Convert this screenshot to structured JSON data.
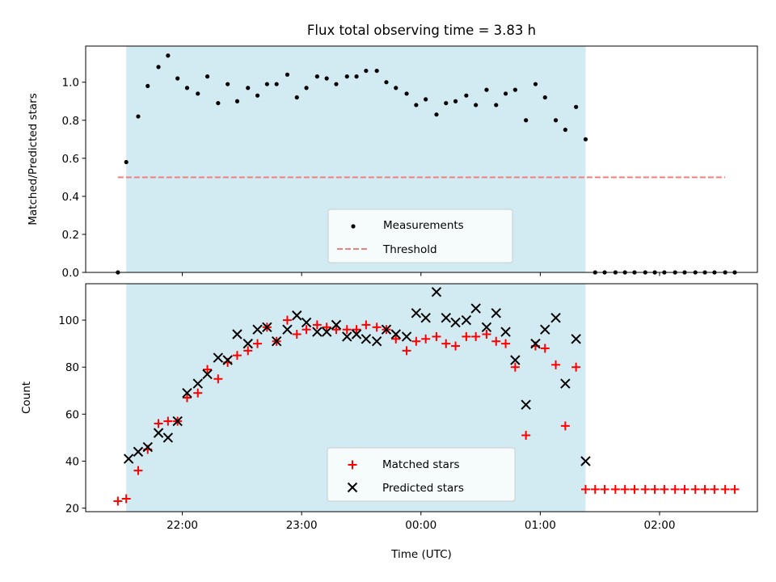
{
  "figure": {
    "title": "Flux total observing time = 3.83 h"
  },
  "chart_data": [
    {
      "type": "scatter",
      "panel": "top",
      "ylabel": "Matched/Predicted stars",
      "xlabel": "",
      "x_unit": "time of day (UTC), hours since 00:00 of first night; values >= 24 wrap past midnight",
      "xlim": [
        21.19,
        26.82
      ],
      "ylim": [
        0.0,
        1.19
      ],
      "yticks": [
        0.0,
        0.2,
        0.4,
        0.6,
        0.8,
        1.0
      ],
      "ytick_labels": [
        "0.0",
        "0.2",
        "0.4",
        "0.6",
        "0.8",
        "1.0"
      ],
      "xticks": [
        22,
        23,
        24,
        25,
        26
      ],
      "xtick_labels": [
        "22:00",
        "23:00",
        "00:00",
        "01:00",
        "02:00"
      ],
      "grid": false,
      "legend_position": "lower-center",
      "shaded_interval": {
        "x": [
          21.53,
          25.38
        ],
        "color": "#add8e6"
      },
      "series": [
        {
          "name": "Measurements",
          "marker": "dot",
          "color": "#000000",
          "x": [
            21.46,
            21.53,
            21.63,
            21.71,
            21.8,
            21.88,
            21.96,
            22.04,
            22.13,
            22.21,
            22.3,
            22.38,
            22.46,
            22.55,
            22.63,
            22.71,
            22.79,
            22.88,
            22.96,
            23.04,
            23.13,
            23.21,
            23.29,
            23.38,
            23.46,
            23.54,
            23.63,
            23.71,
            23.79,
            23.88,
            23.96,
            24.04,
            24.13,
            24.21,
            24.29,
            24.38,
            24.46,
            24.55,
            24.63,
            24.71,
            24.79,
            24.88,
            24.96,
            25.04,
            25.13,
            25.21,
            25.3,
            25.38,
            25.46,
            25.54,
            25.63,
            25.71,
            25.79,
            25.88,
            25.96,
            26.04,
            26.13,
            26.21,
            26.3,
            26.38,
            26.46,
            26.55,
            26.63
          ],
          "y": [
            0.0,
            0.58,
            0.82,
            0.98,
            1.08,
            1.14,
            1.02,
            0.97,
            0.94,
            1.03,
            0.89,
            0.99,
            0.9,
            0.97,
            0.93,
            0.99,
            0.99,
            1.04,
            0.92,
            0.97,
            1.03,
            1.02,
            0.99,
            1.03,
            1.03,
            1.06,
            1.06,
            1.0,
            0.97,
            0.94,
            0.88,
            0.91,
            0.83,
            0.89,
            0.9,
            0.93,
            0.88,
            0.96,
            0.88,
            0.94,
            0.96,
            0.8,
            0.99,
            0.92,
            0.8,
            0.75,
            0.87,
            0.7,
            0.0,
            0.0,
            0.0,
            0.0,
            0.0,
            0.0,
            0.0,
            0.0,
            0.0,
            0.0,
            0.0,
            0.0,
            0.0,
            0.0,
            0.0
          ]
        },
        {
          "name": "Threshold",
          "style": "dashed",
          "color": "#f08080",
          "x": [
            21.46,
            26.55
          ],
          "y": [
            0.5,
            0.5
          ]
        }
      ]
    },
    {
      "type": "scatter",
      "panel": "bottom",
      "ylabel": "Count",
      "xlabel": "Time (UTC)",
      "x_unit": "time of day (UTC), hours since 00:00 of first night; values >= 24 wrap past midnight",
      "xlim": [
        21.19,
        26.82
      ],
      "ylim": [
        18.5,
        115.5
      ],
      "yticks": [
        20,
        40,
        60,
        80,
        100
      ],
      "ytick_labels": [
        "20",
        "40",
        "60",
        "80",
        "100"
      ],
      "xticks": [
        22,
        23,
        24,
        25,
        26
      ],
      "xtick_labels": [
        "22:00",
        "23:00",
        "00:00",
        "01:00",
        "02:00"
      ],
      "grid": false,
      "legend_position": "lower-center",
      "shaded_interval": {
        "x": [
          21.53,
          25.38
        ],
        "color": "#add8e6"
      },
      "series": [
        {
          "name": "Matched stars",
          "marker": "plus",
          "color": "#ff0000",
          "x": [
            21.46,
            21.53,
            21.63,
            21.71,
            21.8,
            21.88,
            21.96,
            22.04,
            22.13,
            22.21,
            22.3,
            22.38,
            22.46,
            22.55,
            22.63,
            22.71,
            22.79,
            22.88,
            22.96,
            23.04,
            23.13,
            23.21,
            23.29,
            23.38,
            23.46,
            23.54,
            23.63,
            23.71,
            23.79,
            23.88,
            23.96,
            24.04,
            24.13,
            24.21,
            24.29,
            24.38,
            24.46,
            24.55,
            24.63,
            24.71,
            24.79,
            24.88,
            24.96,
            25.04,
            25.13,
            25.21,
            25.3,
            25.38,
            25.46,
            25.54,
            25.63,
            25.71,
            25.79,
            25.88,
            25.96,
            26.04,
            26.13,
            26.21,
            26.3,
            26.38,
            26.46,
            26.55,
            26.63
          ],
          "y": [
            23,
            24,
            36,
            45,
            56,
            57,
            57,
            67,
            69,
            79,
            75,
            82,
            85,
            87,
            90,
            97,
            91,
            100,
            94,
            96,
            98,
            97,
            96,
            96,
            96,
            98,
            97,
            96,
            92,
            87,
            91,
            92,
            93,
            90,
            89,
            93,
            93,
            94,
            91,
            90,
            80,
            51,
            89,
            88,
            81,
            55,
            80,
            28,
            28,
            28,
            28,
            28,
            28,
            28,
            28,
            28,
            28,
            28,
            28,
            28,
            28,
            28,
            28
          ]
        },
        {
          "name": "Predicted stars",
          "marker": "x",
          "color": "#000000",
          "x": [
            21.55,
            21.63,
            21.71,
            21.8,
            21.88,
            21.96,
            22.04,
            22.13,
            22.21,
            22.3,
            22.38,
            22.46,
            22.55,
            22.63,
            22.71,
            22.79,
            22.88,
            22.96,
            23.04,
            23.13,
            23.21,
            23.29,
            23.38,
            23.46,
            23.54,
            23.63,
            23.71,
            23.79,
            23.88,
            23.96,
            24.04,
            24.13,
            24.21,
            24.29,
            24.38,
            24.46,
            24.55,
            24.63,
            24.71,
            24.79,
            24.88,
            24.96,
            25.04,
            25.13,
            25.21,
            25.3,
            25.38
          ],
          "y": [
            41,
            44,
            46,
            52,
            50,
            57,
            69,
            73,
            77,
            84,
            83,
            94,
            90,
            96,
            97,
            91,
            96,
            102,
            99,
            95,
            95,
            98,
            93,
            94,
            92,
            91,
            96,
            94,
            93,
            103,
            101,
            112,
            101,
            99,
            100,
            105,
            97,
            103,
            95,
            83,
            64,
            90,
            96,
            101,
            73,
            92,
            40
          ]
        }
      ]
    }
  ]
}
